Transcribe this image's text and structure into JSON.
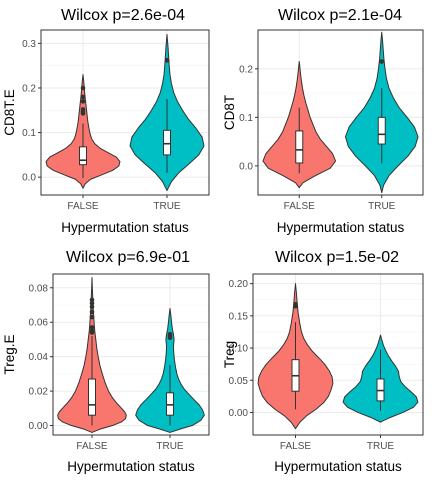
{
  "chart_data": [
    {
      "type": "violin",
      "title": "Wilcox p=2.6e-04",
      "xlabel": "Hypermutation status",
      "ylabel": "CD8T.E",
      "categories": [
        "FALSE",
        "TRUE"
      ],
      "ylim": [
        -0.04,
        0.33
      ],
      "yticks": [
        0.0,
        0.1,
        0.2,
        0.3
      ],
      "ytick_labels": [
        "0.0",
        "0.1",
        "0.2",
        "0.3"
      ],
      "grid": true,
      "colors": [
        "#F8766D",
        "#00BFC4"
      ],
      "groups": [
        {
          "label": "FALSE",
          "color": "#F8766D",
          "box": {
            "q1": 0.028,
            "median": 0.038,
            "q3": 0.068,
            "whisker_low": -0.002,
            "whisker_high": 0.12
          },
          "outliers": [
            0.143,
            0.147,
            0.152,
            0.17,
            0.18,
            0.2
          ],
          "density": [
            [
              -0.025,
              0.0
            ],
            [
              -0.015,
              0.06
            ],
            [
              -0.005,
              0.2
            ],
            [
              0.005,
              0.5
            ],
            [
              0.015,
              0.8
            ],
            [
              0.025,
              0.97
            ],
            [
              0.035,
              1.0
            ],
            [
              0.045,
              0.9
            ],
            [
              0.055,
              0.68
            ],
            [
              0.065,
              0.46
            ],
            [
              0.075,
              0.32
            ],
            [
              0.085,
              0.24
            ],
            [
              0.095,
              0.2
            ],
            [
              0.11,
              0.16
            ],
            [
              0.125,
              0.13
            ],
            [
              0.14,
              0.11
            ],
            [
              0.155,
              0.09
            ],
            [
              0.17,
              0.07
            ],
            [
              0.185,
              0.05
            ],
            [
              0.2,
              0.035
            ],
            [
              0.215,
              0.02
            ],
            [
              0.23,
              0.0
            ]
          ]
        },
        {
          "label": "TRUE",
          "color": "#00BFC4",
          "box": {
            "q1": 0.05,
            "median": 0.075,
            "q3": 0.105,
            "whisker_low": 0.01,
            "whisker_high": 0.175
          },
          "outliers": [
            0.262
          ],
          "density": [
            [
              -0.03,
              0.0
            ],
            [
              -0.01,
              0.12
            ],
            [
              0.01,
              0.32
            ],
            [
              0.03,
              0.6
            ],
            [
              0.05,
              0.86
            ],
            [
              0.07,
              1.0
            ],
            [
              0.09,
              0.95
            ],
            [
              0.11,
              0.78
            ],
            [
              0.13,
              0.58
            ],
            [
              0.15,
              0.42
            ],
            [
              0.17,
              0.28
            ],
            [
              0.19,
              0.18
            ],
            [
              0.21,
              0.12
            ],
            [
              0.23,
              0.08
            ],
            [
              0.25,
              0.06
            ],
            [
              0.27,
              0.045
            ],
            [
              0.29,
              0.03
            ],
            [
              0.305,
              0.015
            ],
            [
              0.32,
              0.0
            ]
          ]
        }
      ]
    },
    {
      "type": "violin",
      "title": "Wilcox p=2.1e-04",
      "xlabel": "Hypermutation status",
      "ylabel": "CD8T",
      "categories": [
        "FALSE",
        "TRUE"
      ],
      "ylim": [
        -0.06,
        0.28
      ],
      "yticks": [
        0.0,
        0.1,
        0.2
      ],
      "ytick_labels": [
        "0.0",
        "0.1",
        "0.2"
      ],
      "grid": true,
      "colors": [
        "#F8766D",
        "#00BFC4"
      ],
      "groups": [
        {
          "label": "FALSE",
          "color": "#F8766D",
          "box": {
            "q1": 0.006,
            "median": 0.033,
            "q3": 0.072,
            "whisker_low": -0.015,
            "whisker_high": 0.12
          },
          "outliers": [],
          "density": [
            [
              -0.045,
              0.0
            ],
            [
              -0.035,
              0.1
            ],
            [
              -0.02,
              0.45
            ],
            [
              -0.005,
              0.85
            ],
            [
              0.01,
              1.0
            ],
            [
              0.025,
              0.92
            ],
            [
              0.04,
              0.75
            ],
            [
              0.055,
              0.58
            ],
            [
              0.07,
              0.46
            ],
            [
              0.085,
              0.38
            ],
            [
              0.1,
              0.3
            ],
            [
              0.115,
              0.24
            ],
            [
              0.13,
              0.18
            ],
            [
              0.145,
              0.13
            ],
            [
              0.16,
              0.09
            ],
            [
              0.175,
              0.06
            ],
            [
              0.19,
              0.035
            ],
            [
              0.205,
              0.015
            ],
            [
              0.215,
              0.0
            ]
          ]
        },
        {
          "label": "TRUE",
          "color": "#00BFC4",
          "box": {
            "q1": 0.045,
            "median": 0.065,
            "q3": 0.1,
            "whisker_low": 0.005,
            "whisker_high": 0.16
          },
          "outliers": [
            0.215
          ],
          "density": [
            [
              -0.055,
              0.0
            ],
            [
              -0.04,
              0.05
            ],
            [
              -0.02,
              0.2
            ],
            [
              0.0,
              0.45
            ],
            [
              0.02,
              0.72
            ],
            [
              0.04,
              0.92
            ],
            [
              0.06,
              1.0
            ],
            [
              0.08,
              0.9
            ],
            [
              0.1,
              0.7
            ],
            [
              0.12,
              0.48
            ],
            [
              0.14,
              0.32
            ],
            [
              0.16,
              0.2
            ],
            [
              0.18,
              0.13
            ],
            [
              0.2,
              0.09
            ],
            [
              0.22,
              0.06
            ],
            [
              0.24,
              0.04
            ],
            [
              0.26,
              0.02
            ],
            [
              0.275,
              0.0
            ]
          ]
        }
      ]
    },
    {
      "type": "violin",
      "title": "Wilcox p=6.9e-01",
      "xlabel": "Hypermutation status",
      "ylabel": "Treg.E",
      "categories": [
        "FALSE",
        "TRUE"
      ],
      "ylim": [
        -0.0055,
        0.088
      ],
      "yticks": [
        0.0,
        0.02,
        0.04,
        0.06,
        0.08
      ],
      "ytick_labels": [
        "0.00",
        "0.02",
        "0.04",
        "0.06",
        "0.08"
      ],
      "grid": true,
      "colors": [
        "#F8766D",
        "#00BFC4"
      ],
      "groups": [
        {
          "label": "FALSE",
          "color": "#F8766D",
          "box": {
            "q1": 0.006,
            "median": 0.012,
            "q3": 0.027,
            "whisker_low": 0.0,
            "whisker_high": 0.052
          },
          "outliers": [
            0.054,
            0.055,
            0.057,
            0.063,
            0.066,
            0.069,
            0.071,
            0.073
          ],
          "density": [
            [
              -0.004,
              0.0
            ],
            [
              -0.002,
              0.25
            ],
            [
              0.0,
              0.6
            ],
            [
              0.002,
              0.85
            ],
            [
              0.004,
              0.98
            ],
            [
              0.006,
              1.0
            ],
            [
              0.008,
              0.95
            ],
            [
              0.01,
              0.86
            ],
            [
              0.013,
              0.72
            ],
            [
              0.016,
              0.6
            ],
            [
              0.02,
              0.48
            ],
            [
              0.025,
              0.38
            ],
            [
              0.03,
              0.3
            ],
            [
              0.035,
              0.23
            ],
            [
              0.04,
              0.18
            ],
            [
              0.045,
              0.14
            ],
            [
              0.05,
              0.11
            ],
            [
              0.055,
              0.08
            ],
            [
              0.06,
              0.06
            ],
            [
              0.065,
              0.045
            ],
            [
              0.07,
              0.03
            ],
            [
              0.075,
              0.02
            ],
            [
              0.08,
              0.01
            ],
            [
              0.086,
              0.0
            ]
          ]
        },
        {
          "label": "TRUE",
          "color": "#00BFC4",
          "box": {
            "q1": 0.006,
            "median": 0.012,
            "q3": 0.019,
            "whisker_low": 0.0,
            "whisker_high": 0.035
          },
          "outliers": [
            0.051,
            0.052,
            0.053
          ],
          "density": [
            [
              -0.004,
              0.0
            ],
            [
              -0.002,
              0.3
            ],
            [
              0.0,
              0.65
            ],
            [
              0.003,
              0.9
            ],
            [
              0.006,
              1.0
            ],
            [
              0.009,
              0.95
            ],
            [
              0.012,
              0.85
            ],
            [
              0.015,
              0.7
            ],
            [
              0.018,
              0.56
            ],
            [
              0.021,
              0.42
            ],
            [
              0.024,
              0.32
            ],
            [
              0.027,
              0.25
            ],
            [
              0.03,
              0.2
            ],
            [
              0.034,
              0.16
            ],
            [
              0.038,
              0.13
            ],
            [
              0.042,
              0.11
            ],
            [
              0.046,
              0.1
            ],
            [
              0.05,
              0.12
            ],
            [
              0.053,
              0.1
            ],
            [
              0.056,
              0.07
            ],
            [
              0.06,
              0.045
            ],
            [
              0.064,
              0.025
            ],
            [
              0.068,
              0.0
            ]
          ]
        }
      ]
    },
    {
      "type": "violin",
      "title": "Wilcox p=1.5e-02",
      "xlabel": "Hypermutation status",
      "ylabel": "Treg",
      "categories": [
        "FALSE",
        "TRUE"
      ],
      "ylim": [
        -0.035,
        0.215
      ],
      "yticks": [
        0.0,
        0.05,
        0.1,
        0.15,
        0.2
      ],
      "ytick_labels": [
        "0.00",
        "0.05",
        "0.10",
        "0.15",
        "0.20"
      ],
      "grid": true,
      "colors": [
        "#F8766D",
        "#00BFC4"
      ],
      "groups": [
        {
          "label": "FALSE",
          "color": "#F8766D",
          "box": {
            "q1": 0.033,
            "median": 0.057,
            "q3": 0.082,
            "whisker_low": 0.005,
            "whisker_high": 0.14
          },
          "outliers": [
            0.165,
            0.168
          ],
          "density": [
            [
              -0.025,
              0.0
            ],
            [
              -0.015,
              0.12
            ],
            [
              -0.005,
              0.3
            ],
            [
              0.005,
              0.55
            ],
            [
              0.015,
              0.75
            ],
            [
              0.025,
              0.88
            ],
            [
              0.035,
              0.95
            ],
            [
              0.045,
              1.0
            ],
            [
              0.055,
              0.98
            ],
            [
              0.065,
              0.9
            ],
            [
              0.075,
              0.78
            ],
            [
              0.085,
              0.62
            ],
            [
              0.095,
              0.45
            ],
            [
              0.105,
              0.32
            ],
            [
              0.115,
              0.22
            ],
            [
              0.125,
              0.16
            ],
            [
              0.14,
              0.11
            ],
            [
              0.155,
              0.07
            ],
            [
              0.17,
              0.045
            ],
            [
              0.185,
              0.025
            ],
            [
              0.2,
              0.0
            ]
          ]
        },
        {
          "label": "TRUE",
          "color": "#00BFC4",
          "box": {
            "q1": 0.018,
            "median": 0.034,
            "q3": 0.052,
            "whisker_low": 0.003,
            "whisker_high": 0.098
          },
          "outliers": [],
          "density": [
            [
              -0.015,
              0.0
            ],
            [
              -0.008,
              0.25
            ],
            [
              0.0,
              0.6
            ],
            [
              0.008,
              0.88
            ],
            [
              0.016,
              1.0
            ],
            [
              0.024,
              0.96
            ],
            [
              0.032,
              0.82
            ],
            [
              0.04,
              0.66
            ],
            [
              0.048,
              0.54
            ],
            [
              0.056,
              0.5
            ],
            [
              0.064,
              0.48
            ],
            [
              0.072,
              0.4
            ],
            [
              0.08,
              0.3
            ],
            [
              0.088,
              0.21
            ],
            [
              0.096,
              0.14
            ],
            [
              0.104,
              0.08
            ],
            [
              0.112,
              0.04
            ],
            [
              0.12,
              0.0
            ]
          ]
        }
      ]
    }
  ]
}
